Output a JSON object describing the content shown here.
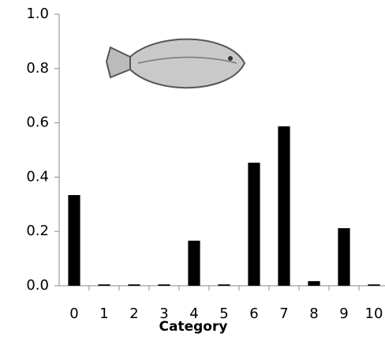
{
  "chart_data": {
    "type": "bar",
    "x_label": "Category",
    "categories": [
      "0",
      "1",
      "2",
      "3",
      "4",
      "5",
      "6",
      "7",
      "8",
      "9",
      "10"
    ],
    "values": [
      0.334,
      0.005,
      0.005,
      0.005,
      0.166,
      0.005,
      0.453,
      0.587,
      0.017,
      0.212,
      0.005
    ],
    "color": "#000000",
    "ylim": [
      0,
      1
    ],
    "yticks": [
      {
        "value": 0,
        "label": "0.0"
      },
      0.2,
      0.4,
      0.6,
      0.8,
      {
        "value": 1,
        "label": "1.0"
      }
    ],
    "grid": false
  }
}
